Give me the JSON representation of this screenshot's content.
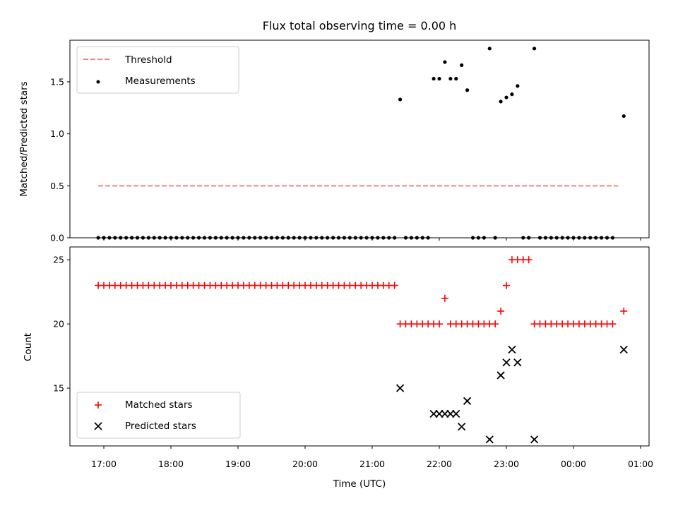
{
  "chart_data": [
    {
      "type": "scatter",
      "title": "Flux total observing time = 0.00 h",
      "xlabel": "",
      "ylabel": "Matched/Predicted stars",
      "ylim": [
        0,
        1.9
      ],
      "yticks": [
        "0.0",
        "0.5",
        "1.0",
        "1.5"
      ],
      "legend_position": "top-left",
      "threshold": {
        "name": "Threshold",
        "value": 0.5,
        "x_start": "16:55",
        "x_end": "00:40",
        "color": "#ff7f7f",
        "style": "dashed"
      },
      "series": [
        {
          "name": "Measurements",
          "color": "#000000",
          "marker": "dot",
          "points": [
            [
              "16:55",
              0
            ],
            [
              "17:00",
              0
            ],
            [
              "17:05",
              0
            ],
            [
              "17:10",
              0
            ],
            [
              "17:15",
              0
            ],
            [
              "17:20",
              0
            ],
            [
              "17:25",
              0
            ],
            [
              "17:30",
              0
            ],
            [
              "17:35",
              0
            ],
            [
              "17:40",
              0
            ],
            [
              "17:45",
              0
            ],
            [
              "17:50",
              0
            ],
            [
              "17:55",
              0
            ],
            [
              "18:00",
              0
            ],
            [
              "18:05",
              0
            ],
            [
              "18:10",
              0
            ],
            [
              "18:15",
              0
            ],
            [
              "18:20",
              0
            ],
            [
              "18:25",
              0
            ],
            [
              "18:30",
              0
            ],
            [
              "18:35",
              0
            ],
            [
              "18:40",
              0
            ],
            [
              "18:45",
              0
            ],
            [
              "18:50",
              0
            ],
            [
              "18:55",
              0
            ],
            [
              "19:00",
              0
            ],
            [
              "19:05",
              0
            ],
            [
              "19:10",
              0
            ],
            [
              "19:15",
              0
            ],
            [
              "19:20",
              0
            ],
            [
              "19:25",
              0
            ],
            [
              "19:30",
              0
            ],
            [
              "19:35",
              0
            ],
            [
              "19:40",
              0
            ],
            [
              "19:45",
              0
            ],
            [
              "19:50",
              0
            ],
            [
              "19:55",
              0
            ],
            [
              "20:00",
              0
            ],
            [
              "20:05",
              0
            ],
            [
              "20:10",
              0
            ],
            [
              "20:15",
              0
            ],
            [
              "20:20",
              0
            ],
            [
              "20:25",
              0
            ],
            [
              "20:30",
              0
            ],
            [
              "20:35",
              0
            ],
            [
              "20:40",
              0
            ],
            [
              "20:45",
              0
            ],
            [
              "20:50",
              0
            ],
            [
              "20:55",
              0
            ],
            [
              "21:00",
              0
            ],
            [
              "21:05",
              0
            ],
            [
              "21:10",
              0
            ],
            [
              "21:15",
              0
            ],
            [
              "21:20",
              0
            ],
            [
              "21:25",
              1.33
            ],
            [
              "21:30",
              0
            ],
            [
              "21:35",
              0
            ],
            [
              "21:40",
              0
            ],
            [
              "21:45",
              0
            ],
            [
              "21:50",
              0
            ],
            [
              "21:55",
              1.53
            ],
            [
              "22:00",
              1.53
            ],
            [
              "22:05",
              1.69
            ],
            [
              "22:10",
              1.53
            ],
            [
              "22:15",
              1.53
            ],
            [
              "22:20",
              1.66
            ],
            [
              "22:25",
              1.42
            ],
            [
              "22:30",
              0
            ],
            [
              "22:35",
              0
            ],
            [
              "22:40",
              0
            ],
            [
              "22:45",
              1.82
            ],
            [
              "22:50",
              0
            ],
            [
              "22:55",
              1.31
            ],
            [
              "23:00",
              1.35
            ],
            [
              "23:05",
              1.38
            ],
            [
              "23:10",
              1.46
            ],
            [
              "23:15",
              0
            ],
            [
              "23:20",
              0
            ],
            [
              "23:25",
              1.82
            ],
            [
              "23:30",
              0
            ],
            [
              "23:35",
              0
            ],
            [
              "23:40",
              0
            ],
            [
              "23:45",
              0
            ],
            [
              "23:50",
              0
            ],
            [
              "23:55",
              0
            ],
            [
              "00:00",
              0
            ],
            [
              "00:05",
              0
            ],
            [
              "00:10",
              0
            ],
            [
              "00:15",
              0
            ],
            [
              "00:20",
              0
            ],
            [
              "00:25",
              0
            ],
            [
              "00:30",
              0
            ],
            [
              "00:35",
              0
            ],
            [
              "00:45",
              1.17
            ]
          ]
        }
      ]
    },
    {
      "type": "scatter",
      "title": "",
      "xlabel": "Time (UTC)",
      "ylabel": "Count",
      "ylim": [
        10.5,
        26
      ],
      "yticks": [
        "15",
        "20",
        "25"
      ],
      "xticks": [
        "17:00",
        "18:00",
        "19:00",
        "20:00",
        "21:00",
        "22:00",
        "23:00",
        "00:00",
        "01:00"
      ],
      "legend_position": "bottom-left",
      "series": [
        {
          "name": "Matched stars",
          "color": "#ff0000",
          "marker": "plus",
          "points": [
            [
              "16:55",
              23
            ],
            [
              "17:00",
              23
            ],
            [
              "17:05",
              23
            ],
            [
              "17:10",
              23
            ],
            [
              "17:15",
              23
            ],
            [
              "17:20",
              23
            ],
            [
              "17:25",
              23
            ],
            [
              "17:30",
              23
            ],
            [
              "17:35",
              23
            ],
            [
              "17:40",
              23
            ],
            [
              "17:45",
              23
            ],
            [
              "17:50",
              23
            ],
            [
              "17:55",
              23
            ],
            [
              "18:00",
              23
            ],
            [
              "18:05",
              23
            ],
            [
              "18:10",
              23
            ],
            [
              "18:15",
              23
            ],
            [
              "18:20",
              23
            ],
            [
              "18:25",
              23
            ],
            [
              "18:30",
              23
            ],
            [
              "18:35",
              23
            ],
            [
              "18:40",
              23
            ],
            [
              "18:45",
              23
            ],
            [
              "18:50",
              23
            ],
            [
              "18:55",
              23
            ],
            [
              "19:00",
              23
            ],
            [
              "19:05",
              23
            ],
            [
              "19:10",
              23
            ],
            [
              "19:15",
              23
            ],
            [
              "19:20",
              23
            ],
            [
              "19:25",
              23
            ],
            [
              "19:30",
              23
            ],
            [
              "19:35",
              23
            ],
            [
              "19:40",
              23
            ],
            [
              "19:45",
              23
            ],
            [
              "19:50",
              23
            ],
            [
              "19:55",
              23
            ],
            [
              "20:00",
              23
            ],
            [
              "20:05",
              23
            ],
            [
              "20:10",
              23
            ],
            [
              "20:15",
              23
            ],
            [
              "20:20",
              23
            ],
            [
              "20:25",
              23
            ],
            [
              "20:30",
              23
            ],
            [
              "20:35",
              23
            ],
            [
              "20:40",
              23
            ],
            [
              "20:45",
              23
            ],
            [
              "20:50",
              23
            ],
            [
              "20:55",
              23
            ],
            [
              "21:00",
              23
            ],
            [
              "21:05",
              23
            ],
            [
              "21:10",
              23
            ],
            [
              "21:15",
              23
            ],
            [
              "21:20",
              23
            ],
            [
              "21:25",
              20
            ],
            [
              "21:30",
              20
            ],
            [
              "21:35",
              20
            ],
            [
              "21:40",
              20
            ],
            [
              "21:45",
              20
            ],
            [
              "21:50",
              20
            ],
            [
              "21:55",
              20
            ],
            [
              "22:00",
              20
            ],
            [
              "22:05",
              22
            ],
            [
              "22:10",
              20
            ],
            [
              "22:15",
              20
            ],
            [
              "22:20",
              20
            ],
            [
              "22:25",
              20
            ],
            [
              "22:30",
              20
            ],
            [
              "22:35",
              20
            ],
            [
              "22:40",
              20
            ],
            [
              "22:45",
              20
            ],
            [
              "22:50",
              20
            ],
            [
              "22:55",
              21
            ],
            [
              "23:00",
              23
            ],
            [
              "23:05",
              25
            ],
            [
              "23:10",
              25
            ],
            [
              "23:15",
              25
            ],
            [
              "23:20",
              25
            ],
            [
              "23:25",
              20
            ],
            [
              "23:30",
              20
            ],
            [
              "23:35",
              20
            ],
            [
              "23:40",
              20
            ],
            [
              "23:45",
              20
            ],
            [
              "23:50",
              20
            ],
            [
              "23:55",
              20
            ],
            [
              "00:00",
              20
            ],
            [
              "00:05",
              20
            ],
            [
              "00:10",
              20
            ],
            [
              "00:15",
              20
            ],
            [
              "00:20",
              20
            ],
            [
              "00:25",
              20
            ],
            [
              "00:30",
              20
            ],
            [
              "00:35",
              20
            ],
            [
              "00:45",
              21
            ]
          ]
        },
        {
          "name": "Predicted stars",
          "color": "#000000",
          "marker": "x",
          "points": [
            [
              "21:25",
              15
            ],
            [
              "21:55",
              13
            ],
            [
              "22:00",
              13
            ],
            [
              "22:05",
              13
            ],
            [
              "22:10",
              13
            ],
            [
              "22:15",
              13
            ],
            [
              "22:20",
              12
            ],
            [
              "22:25",
              14
            ],
            [
              "22:45",
              11
            ],
            [
              "22:55",
              16
            ],
            [
              "23:00",
              17
            ],
            [
              "23:05",
              18
            ],
            [
              "23:10",
              17
            ],
            [
              "23:25",
              11
            ],
            [
              "00:45",
              18
            ]
          ]
        }
      ]
    }
  ]
}
